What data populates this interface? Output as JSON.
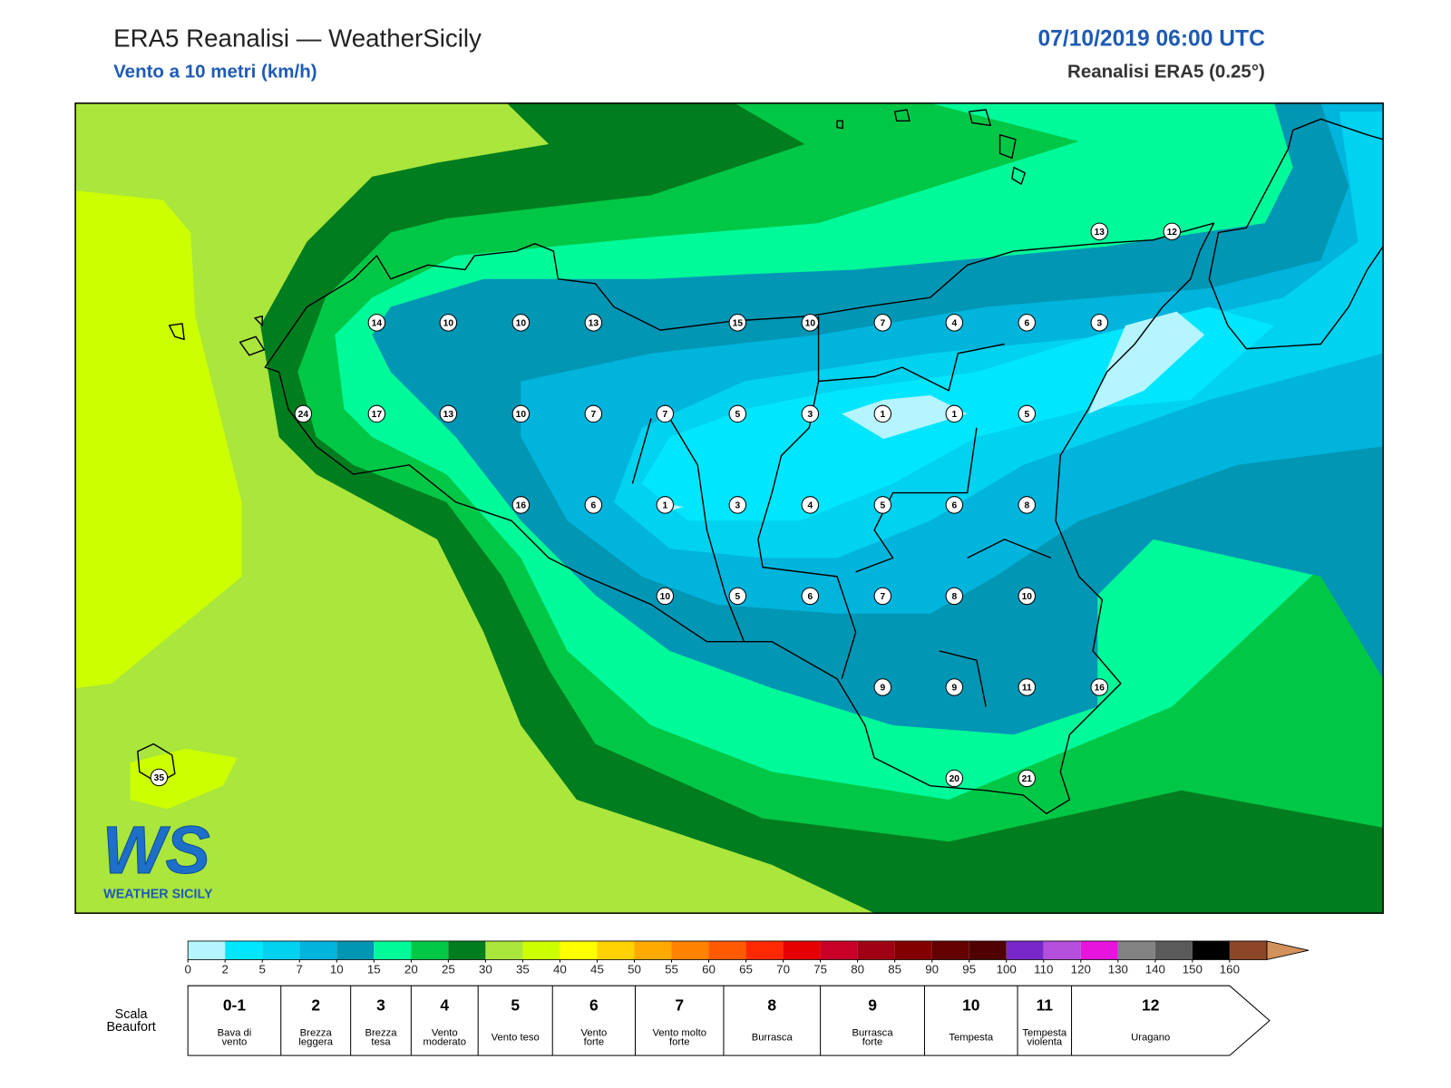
{
  "header": {
    "title": "ERA5 Reanalisi — WeatherSicily",
    "subtitle": "Vento a 10 metri (km/h)",
    "datetime": "07/10/2019 06:00 UTC",
    "source": "Reanalisi ERA5 (0.25°)"
  },
  "map": {
    "stations": [
      13,
      12,
      14,
      10,
      10,
      13,
      15,
      10,
      7,
      4,
      6,
      3,
      24,
      17,
      13,
      10,
      7,
      7,
      5,
      3,
      1,
      1,
      5,
      16,
      6,
      1,
      3,
      4,
      5,
      6,
      8,
      10,
      5,
      6,
      7,
      8,
      10,
      9,
      9,
      11,
      16,
      20,
      21,
      35
    ]
  },
  "logo": {
    "mark": "WS",
    "text": "WEATHER SICILY"
  },
  "colorbar": {
    "ticks": [
      0,
      2,
      5,
      7,
      10,
      15,
      20,
      25,
      30,
      35,
      40,
      45,
      50,
      55,
      60,
      65,
      70,
      75,
      80,
      85,
      90,
      95,
      100,
      110,
      120,
      130,
      140,
      150,
      160
    ],
    "colors": [
      "#b4f5ff",
      "#00e6ff",
      "#00d2f0",
      "#00b4dc",
      "#0096b4",
      "#00fa9a",
      "#00c846",
      "#007d1e",
      "#aae63c",
      "#ccff00",
      "#ffff00",
      "#ffd200",
      "#ffaa00",
      "#ff8200",
      "#ff5a00",
      "#ff2800",
      "#e60000",
      "#c80028",
      "#a00014",
      "#820000",
      "#640000",
      "#500000",
      "#7828c8",
      "#b450dc",
      "#e614dc",
      "#828282",
      "#5a5a5a",
      "#000000",
      "#8c4628"
    ],
    "over_color": "#d2915a"
  },
  "beaufort": {
    "title": [
      "Scala",
      "Beaufort"
    ],
    "levels": [
      {
        "force": "0-1",
        "label": [
          "Bava di",
          "vento"
        ]
      },
      {
        "force": "2",
        "label": [
          "Brezza",
          "leggera"
        ]
      },
      {
        "force": "3",
        "label": [
          "Brezza",
          "tesa"
        ]
      },
      {
        "force": "4",
        "label": [
          "Vento",
          "moderato"
        ]
      },
      {
        "force": "5",
        "label": [
          "Vento teso"
        ]
      },
      {
        "force": "6",
        "label": [
          "Vento",
          "forte"
        ]
      },
      {
        "force": "7",
        "label": [
          "Vento molto",
          "forte"
        ]
      },
      {
        "force": "8",
        "label": [
          "Burrasca"
        ]
      },
      {
        "force": "9",
        "label": [
          "Burrasca",
          "forte"
        ]
      },
      {
        "force": "10",
        "label": [
          "Tempesta"
        ]
      },
      {
        "force": "11",
        "label": [
          "Tempesta",
          "violenta"
        ]
      },
      {
        "force": "12",
        "label": [
          "Uragano"
        ]
      }
    ]
  }
}
